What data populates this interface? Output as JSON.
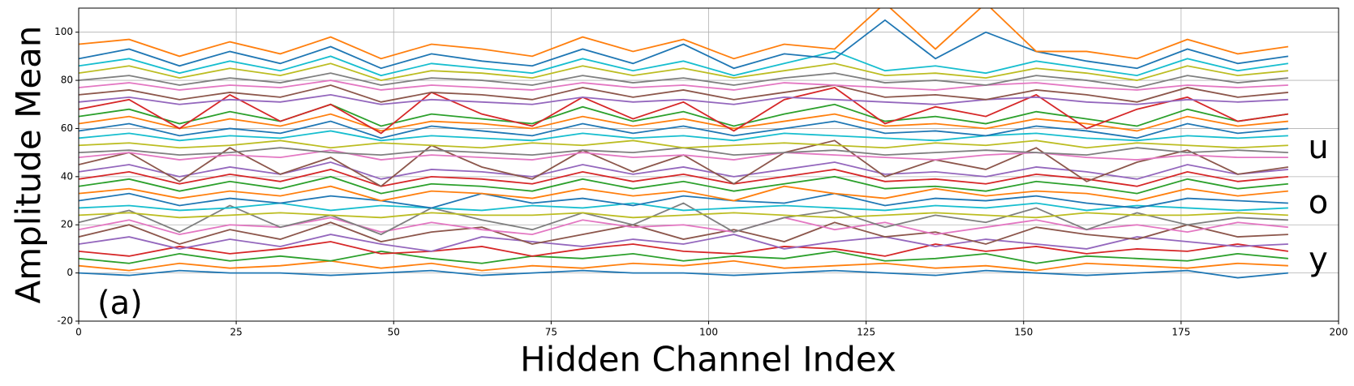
{
  "chart_data": {
    "type": "line",
    "x_label": "Hidden Channel Index",
    "y_label": "Amplitude Mean",
    "annotations": [
      "(a)",
      "u",
      "o",
      "y"
    ],
    "xlim": [
      0,
      200
    ],
    "ylim": [
      -20,
      110
    ],
    "xticks": [
      0,
      25,
      50,
      75,
      100,
      125,
      150,
      175,
      200
    ],
    "yticks": [
      -20,
      0,
      20,
      40,
      60,
      80,
      100
    ],
    "grid": true,
    "x": [
      0,
      8,
      16,
      24,
      32,
      40,
      48,
      56,
      64,
      72,
      80,
      88,
      96,
      104,
      112,
      120,
      128,
      136,
      144,
      152,
      160,
      168,
      176,
      184,
      192
    ],
    "series": [
      {
        "color": "#1f77b4",
        "values": [
          0,
          -1,
          1,
          0,
          0,
          -1,
          0,
          1,
          -1,
          0,
          1,
          0,
          0,
          -1,
          0,
          1,
          0,
          -1,
          1,
          0,
          -1,
          0,
          1,
          -2,
          0
        ]
      },
      {
        "color": "#ff7f0e",
        "values": [
          3,
          1,
          4,
          2,
          3,
          5,
          2,
          4,
          1,
          3,
          2,
          4,
          3,
          5,
          2,
          3,
          4,
          2,
          3,
          1,
          4,
          3,
          2,
          4,
          3
        ]
      },
      {
        "color": "#2ca02c",
        "values": [
          6,
          4,
          8,
          5,
          7,
          5,
          9,
          6,
          4,
          7,
          6,
          8,
          5,
          7,
          6,
          9,
          5,
          6,
          8,
          4,
          7,
          6,
          5,
          8,
          6
        ]
      },
      {
        "color": "#d62728",
        "values": [
          9,
          7,
          11,
          8,
          10,
          13,
          8,
          9,
          11,
          7,
          10,
          12,
          9,
          8,
          11,
          10,
          7,
          12,
          9,
          11,
          8,
          10,
          9,
          12,
          9
        ]
      },
      {
        "color": "#9467bd",
        "values": [
          12,
          15,
          10,
          14,
          11,
          16,
          12,
          9,
          15,
          13,
          11,
          14,
          12,
          16,
          10,
          13,
          15,
          11,
          14,
          12,
          10,
          15,
          13,
          11,
          12
        ]
      },
      {
        "color": "#8c564b",
        "values": [
          15,
          20,
          12,
          18,
          14,
          21,
          13,
          17,
          19,
          12,
          16,
          20,
          14,
          18,
          13,
          21,
          15,
          17,
          12,
          19,
          16,
          14,
          20,
          15,
          16
        ]
      },
      {
        "color": "#e377c2",
        "values": [
          18,
          22,
          16,
          20,
          19,
          23,
          17,
          21,
          18,
          16,
          22,
          19,
          20,
          17,
          23,
          18,
          21,
          16,
          19,
          22,
          18,
          20,
          17,
          21,
          19
        ]
      },
      {
        "color": "#7f7f7f",
        "values": [
          21,
          26,
          17,
          28,
          19,
          24,
          16,
          27,
          22,
          18,
          25,
          20,
          29,
          17,
          23,
          26,
          19,
          24,
          21,
          27,
          18,
          25,
          20,
          23,
          22
        ]
      },
      {
        "color": "#bcbd22",
        "values": [
          24,
          25,
          23,
          24,
          25,
          24,
          23,
          25,
          24,
          24,
          25,
          23,
          24,
          25,
          24,
          23,
          24,
          25,
          24,
          23,
          25,
          24,
          24,
          25,
          24
        ]
      },
      {
        "color": "#17becf",
        "values": [
          27,
          28,
          26,
          27,
          29,
          26,
          28,
          27,
          26,
          28,
          27,
          29,
          26,
          27,
          28,
          27,
          26,
          28,
          27,
          29,
          26,
          28,
          27,
          26,
          27
        ]
      },
      {
        "color": "#1f77b4",
        "values": [
          30,
          33,
          28,
          31,
          29,
          32,
          30,
          27,
          33,
          29,
          31,
          28,
          32,
          30,
          29,
          33,
          28,
          31,
          30,
          32,
          29,
          27,
          31,
          30,
          29
        ]
      },
      {
        "color": "#ff7f0e",
        "values": [
          33,
          35,
          31,
          34,
          32,
          36,
          30,
          34,
          33,
          31,
          35,
          32,
          34,
          30,
          36,
          33,
          31,
          35,
          32,
          34,
          33,
          30,
          35,
          32,
          34
        ]
      },
      {
        "color": "#2ca02c",
        "values": [
          36,
          39,
          34,
          38,
          35,
          40,
          33,
          37,
          36,
          34,
          39,
          35,
          38,
          34,
          37,
          40,
          35,
          36,
          34,
          38,
          36,
          33,
          39,
          35,
          37
        ]
      },
      {
        "color": "#d62728",
        "values": [
          39,
          42,
          37,
          41,
          38,
          43,
          36,
          40,
          39,
          37,
          42,
          38,
          41,
          37,
          40,
          43,
          38,
          39,
          37,
          41,
          39,
          36,
          42,
          38,
          40
        ]
      },
      {
        "color": "#9467bd",
        "values": [
          42,
          45,
          40,
          44,
          41,
          46,
          39,
          43,
          42,
          40,
          45,
          41,
          44,
          40,
          43,
          46,
          41,
          42,
          40,
          44,
          42,
          39,
          45,
          41,
          43
        ]
      },
      {
        "color": "#8c564b",
        "values": [
          45,
          50,
          38,
          52,
          41,
          48,
          36,
          53,
          44,
          39,
          51,
          42,
          49,
          37,
          50,
          55,
          40,
          47,
          43,
          52,
          38,
          46,
          51,
          41,
          44
        ]
      },
      {
        "color": "#e377c2",
        "values": [
          48,
          50,
          47,
          49,
          48,
          51,
          47,
          49,
          48,
          47,
          50,
          48,
          49,
          47,
          50,
          49,
          48,
          47,
          49,
          50,
          48,
          47,
          49,
          48,
          48
        ]
      },
      {
        "color": "#7f7f7f",
        "values": [
          50,
          51,
          49,
          50,
          52,
          50,
          49,
          51,
          50,
          49,
          51,
          50,
          52,
          49,
          50,
          51,
          49,
          50,
          51,
          50,
          49,
          52,
          50,
          51,
          50
        ]
      },
      {
        "color": "#bcbd22",
        "values": [
          53,
          54,
          52,
          53,
          55,
          52,
          54,
          53,
          52,
          54,
          53,
          55,
          52,
          53,
          54,
          53,
          52,
          54,
          53,
          55,
          52,
          54,
          53,
          52,
          53
        ]
      },
      {
        "color": "#17becf",
        "values": [
          56,
          58,
          55,
          57,
          56,
          59,
          55,
          57,
          56,
          55,
          58,
          56,
          57,
          55,
          58,
          57,
          56,
          55,
          57,
          58,
          56,
          55,
          57,
          56,
          57
        ]
      },
      {
        "color": "#1f77b4",
        "values": [
          59,
          62,
          57,
          60,
          58,
          63,
          56,
          61,
          59,
          57,
          62,
          58,
          61,
          57,
          60,
          63,
          58,
          59,
          57,
          61,
          59,
          56,
          62,
          58,
          60
        ]
      },
      {
        "color": "#ff7f0e",
        "values": [
          62,
          65,
          60,
          64,
          61,
          66,
          59,
          63,
          62,
          60,
          65,
          61,
          64,
          60,
          63,
          66,
          61,
          62,
          60,
          64,
          62,
          59,
          65,
          61,
          63
        ]
      },
      {
        "color": "#2ca02c",
        "values": [
          65,
          68,
          62,
          67,
          63,
          70,
          61,
          66,
          64,
          62,
          69,
          63,
          67,
          61,
          66,
          70,
          63,
          65,
          62,
          67,
          64,
          61,
          68,
          63,
          66
        ]
      },
      {
        "color": "#d62728",
        "values": [
          68,
          72,
          60,
          74,
          63,
          70,
          58,
          75,
          66,
          61,
          73,
          64,
          71,
          59,
          72,
          77,
          62,
          69,
          65,
          74,
          60,
          68,
          73,
          63,
          66
        ]
      },
      {
        "color": "#9467bd",
        "values": [
          71,
          73,
          70,
          72,
          71,
          74,
          70,
          72,
          71,
          70,
          73,
          71,
          72,
          70,
          73,
          72,
          71,
          70,
          72,
          73,
          71,
          70,
          72,
          71,
          72
        ]
      },
      {
        "color": "#8c564b",
        "values": [
          74,
          76,
          72,
          75,
          73,
          78,
          71,
          75,
          74,
          72,
          77,
          73,
          76,
          72,
          75,
          78,
          73,
          74,
          72,
          76,
          74,
          71,
          77,
          73,
          75
        ]
      },
      {
        "color": "#e377c2",
        "values": [
          77,
          79,
          76,
          78,
          77,
          80,
          76,
          78,
          77,
          76,
          79,
          77,
          78,
          76,
          79,
          78,
          77,
          76,
          78,
          79,
          77,
          76,
          78,
          77,
          78
        ]
      },
      {
        "color": "#7f7f7f",
        "values": [
          80,
          82,
          78,
          81,
          79,
          83,
          78,
          81,
          80,
          78,
          82,
          79,
          81,
          78,
          81,
          83,
          79,
          80,
          78,
          82,
          80,
          77,
          82,
          79,
          81
        ]
      },
      {
        "color": "#bcbd22",
        "values": [
          83,
          86,
          81,
          85,
          82,
          87,
          80,
          84,
          83,
          81,
          86,
          82,
          85,
          81,
          84,
          87,
          82,
          83,
          81,
          85,
          83,
          80,
          86,
          82,
          84
        ]
      },
      {
        "color": "#17becf",
        "values": [
          86,
          89,
          83,
          88,
          84,
          90,
          82,
          87,
          85,
          83,
          89,
          84,
          88,
          82,
          87,
          92,
          84,
          86,
          83,
          88,
          85,
          82,
          89,
          84,
          87
        ]
      },
      {
        "color": "#1f77b4",
        "values": [
          89,
          93,
          86,
          92,
          87,
          94,
          85,
          91,
          88,
          86,
          93,
          87,
          95,
          85,
          91,
          89,
          105,
          89,
          100,
          92,
          88,
          85,
          93,
          87,
          90
        ]
      },
      {
        "color": "#ff7f0e",
        "values": [
          95,
          97,
          90,
          96,
          91,
          98,
          89,
          95,
          93,
          90,
          98,
          92,
          97,
          89,
          95,
          93,
          112,
          93,
          112,
          92,
          92,
          89,
          97,
          91,
          94
        ]
      }
    ]
  }
}
